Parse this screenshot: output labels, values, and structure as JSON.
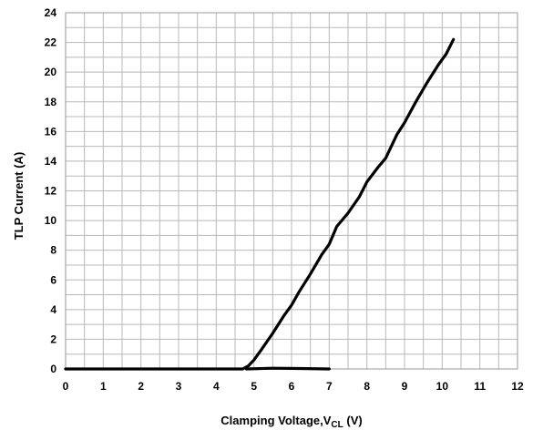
{
  "chart_data": {
    "type": "line",
    "title": "",
    "xlabel": "Clamping Voltage,V",
    "xlabel_sub": "CL",
    "xlabel_unit": " (V)",
    "ylabel": "TLP Current  (A)",
    "xlim": [
      0,
      12
    ],
    "ylim": [
      0,
      24
    ],
    "x_ticks": [
      0,
      1,
      2,
      3,
      4,
      5,
      6,
      7,
      8,
      9,
      10,
      11,
      12
    ],
    "y_ticks": [
      0,
      2,
      4,
      6,
      8,
      10,
      12,
      14,
      16,
      18,
      20,
      22,
      24
    ],
    "x_minor_step": 0.5,
    "y_minor_step": 1,
    "grid": true,
    "series": [
      {
        "color": "#000000",
        "points": [
          [
            0,
            0.0
          ],
          [
            4.7,
            0.0
          ],
          [
            4.85,
            0.2
          ],
          [
            5.0,
            0.6
          ],
          [
            5.2,
            1.3
          ],
          [
            5.5,
            2.4
          ],
          [
            5.8,
            3.6
          ],
          [
            6.0,
            4.3
          ],
          [
            6.2,
            5.2
          ],
          [
            6.5,
            6.4
          ],
          [
            6.8,
            7.7
          ],
          [
            7.0,
            8.4
          ],
          [
            7.2,
            9.6
          ],
          [
            7.5,
            10.5
          ],
          [
            7.8,
            11.6
          ],
          [
            8.0,
            12.6
          ],
          [
            8.3,
            13.6
          ],
          [
            8.5,
            14.2
          ],
          [
            8.8,
            15.8
          ],
          [
            9.0,
            16.6
          ],
          [
            9.3,
            18.0
          ],
          [
            9.6,
            19.3
          ],
          [
            9.9,
            20.5
          ],
          [
            10.1,
            21.2
          ],
          [
            10.3,
            22.2
          ]
        ]
      },
      {
        "color": "#000000",
        "points": [
          [
            4.8,
            0.0
          ],
          [
            5.5,
            0.05
          ],
          [
            6.2,
            0.03
          ],
          [
            7.0,
            0.0
          ]
        ]
      }
    ]
  }
}
